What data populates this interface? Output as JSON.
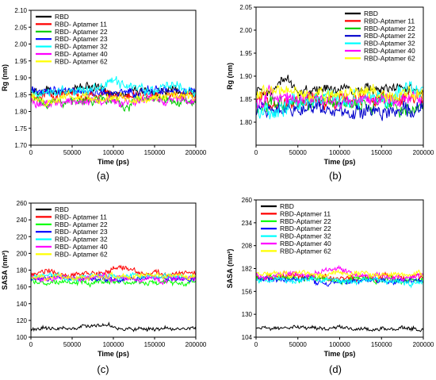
{
  "figure": {
    "panel_labels": [
      "(a)",
      "(b)",
      "(c)",
      "(d)"
    ]
  },
  "chart_data": [
    {
      "panel": "(a)",
      "type": "line",
      "xlabel": "Time (ps)",
      "ylabel": "Rg (nm)",
      "xlim": [
        0,
        200000
      ],
      "ylim": [
        1.7,
        2.1
      ],
      "xticks": [
        0,
        50000,
        100000,
        150000,
        200000
      ],
      "yticks": [
        1.7,
        1.75,
        1.8,
        1.85,
        1.9,
        1.95,
        2.0,
        2.05,
        2.1
      ],
      "y_decimals": 2,
      "legend_position": "top-left",
      "series": [
        {
          "name": "RBD",
          "color": "#000000",
          "mean": 1.86,
          "noise": 0.012,
          "bumps": [
            {
              "t": 70000,
              "h": 0.02,
              "w": 12000
            }
          ]
        },
        {
          "name": "RBD- Aptamer 11",
          "color": "#ff0000",
          "mean": 1.85,
          "noise": 0.012,
          "bumps": []
        },
        {
          "name": "RBD- Aptamer 22",
          "color": "#00cc00",
          "mean": 1.83,
          "noise": 0.012,
          "bumps": [
            {
              "t": 115000,
              "h": -0.02,
              "w": 8000
            }
          ]
        },
        {
          "name": "RBD- Aptamer 23",
          "color": "#0000ff",
          "mean": 1.86,
          "noise": 0.012,
          "bumps": []
        },
        {
          "name": "RBD- Aptamer 32",
          "color": "#00ffff",
          "mean": 1.86,
          "noise": 0.014,
          "bumps": [
            {
              "t": 100000,
              "h": 0.025,
              "w": 20000
            },
            {
              "t": 165000,
              "h": 0.02,
              "w": 15000
            }
          ]
        },
        {
          "name": "RBD- Aptamer 40",
          "color": "#ff00ff",
          "mean": 1.83,
          "noise": 0.012,
          "bumps": []
        },
        {
          "name": "RBD- Aptamer 62",
          "color": "#ffff00",
          "mean": 1.84,
          "noise": 0.012,
          "bumps": []
        }
      ]
    },
    {
      "panel": "(b)",
      "type": "line",
      "xlabel": "Time (ps)",
      "ylabel": "Rg (nm)",
      "xlim": [
        0,
        200000
      ],
      "ylim": [
        1.75,
        2.05
      ],
      "xticks": [
        0,
        50000,
        100000,
        150000,
        200000
      ],
      "yticks": [
        1.8,
        1.85,
        1.9,
        1.95,
        2.0,
        2.05
      ],
      "y_decimals": 2,
      "legend_position": "top-right",
      "series": [
        {
          "name": "RBD",
          "color": "#000000",
          "mean": 1.87,
          "noise": 0.01,
          "bumps": [
            {
              "t": 35000,
              "h": 0.03,
              "w": 9000
            }
          ]
        },
        {
          "name": "RBD-Aptamer 11",
          "color": "#ff0000",
          "mean": 1.85,
          "noise": 0.014,
          "bumps": []
        },
        {
          "name": "RBD-Aptamer 22",
          "color": "#00cc00",
          "mean": 1.84,
          "noise": 0.014,
          "bumps": [
            {
              "t": 175000,
              "h": -0.02,
              "w": 12000
            }
          ]
        },
        {
          "name": "RBD-Aptamer 22",
          "color": "#0000cc",
          "mean": 1.83,
          "noise": 0.015,
          "bumps": [
            {
              "t": 110000,
              "h": -0.02,
              "w": 25000
            }
          ]
        },
        {
          "name": "RBD-Aptamer 32",
          "color": "#00ffff",
          "mean": 1.85,
          "noise": 0.016,
          "bumps": [
            {
              "t": 15000,
              "h": -0.03,
              "w": 15000
            },
            {
              "t": 185000,
              "h": 0.03,
              "w": 15000
            }
          ]
        },
        {
          "name": "RBD-Aptamer 40",
          "color": "#ff00ff",
          "mean": 1.85,
          "noise": 0.014,
          "bumps": []
        },
        {
          "name": "RBD-Aptamer 62",
          "color": "#ffff00",
          "mean": 1.86,
          "noise": 0.013,
          "bumps": []
        }
      ]
    },
    {
      "panel": "(c)",
      "type": "line",
      "xlabel": "Time (ps)",
      "ylabel": "SASA (nm²)",
      "xlim": [
        0,
        200000
      ],
      "ylim": [
        100,
        260
      ],
      "xticks": [
        0,
        50000,
        100000,
        150000,
        200000
      ],
      "yticks": [
        100,
        120,
        140,
        160,
        180,
        200,
        220,
        240,
        260
      ],
      "y_decimals": 0,
      "legend_position": "top-left",
      "series": [
        {
          "name": "RBD",
          "color": "#000000",
          "mean": 110,
          "noise": 2,
          "bumps": [
            {
              "t": 85000,
              "h": 5,
              "w": 20000
            }
          ]
        },
        {
          "name": "RBD- Aptamer 11",
          "color": "#ff0000",
          "mean": 176,
          "noise": 3,
          "bumps": [
            {
              "t": 110000,
              "h": 5,
              "w": 15000
            }
          ]
        },
        {
          "name": "RBD- Aptamer 22",
          "color": "#00ff00",
          "mean": 166,
          "noise": 3,
          "bumps": []
        },
        {
          "name": "RBD- Aptamer 23",
          "color": "#0000ff",
          "mean": 170,
          "noise": 3,
          "bumps": []
        },
        {
          "name": "RBD- Aptamer 32",
          "color": "#00ffff",
          "mean": 172,
          "noise": 3,
          "bumps": []
        },
        {
          "name": "RBD- Aptamer 40",
          "color": "#ff00ff",
          "mean": 170,
          "noise": 3,
          "bumps": []
        },
        {
          "name": "RBD- Aptamer 62",
          "color": "#ffff00",
          "mean": 172,
          "noise": 3,
          "bumps": []
        }
      ]
    },
    {
      "panel": "(d)",
      "type": "line",
      "xlabel": "Time (ps)",
      "ylabel": "SASA (nm²)",
      "xlim": [
        0,
        200000
      ],
      "ylim": [
        104,
        260
      ],
      "xticks": [
        0,
        50000,
        100000,
        150000,
        200000
      ],
      "yticks": [
        104,
        130,
        156,
        182,
        208,
        234,
        260
      ],
      "y_decimals": 0,
      "legend_position": "top-left",
      "series": [
        {
          "name": "RBD",
          "color": "#000000",
          "mean": 114,
          "noise": 2,
          "bumps": []
        },
        {
          "name": "RBD-Aptamer 11",
          "color": "#ff0000",
          "mean": 172,
          "noise": 3,
          "bumps": []
        },
        {
          "name": "RBD-Aptamer 22",
          "color": "#00ff00",
          "mean": 170,
          "noise": 3,
          "bumps": []
        },
        {
          "name": "RBD-Aptamer 22",
          "color": "#0000ff",
          "mean": 168,
          "noise": 3,
          "bumps": []
        },
        {
          "name": "RBD-Aptamer 32",
          "color": "#00ffff",
          "mean": 168,
          "noise": 3,
          "bumps": []
        },
        {
          "name": "RBD-Aptamer 40",
          "color": "#ff00ff",
          "mean": 174,
          "noise": 3,
          "bumps": [
            {
              "t": 95000,
              "h": 6,
              "w": 20000
            }
          ]
        },
        {
          "name": "RBD-Aptamer 62",
          "color": "#ffff00",
          "mean": 176,
          "noise": 3,
          "bumps": []
        }
      ]
    }
  ]
}
